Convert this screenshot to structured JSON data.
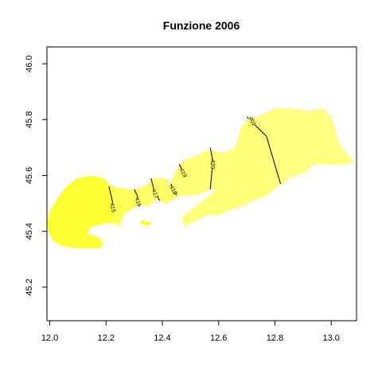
{
  "chart_data": {
    "type": "map",
    "title": "Funzione 2006",
    "xlabel": "",
    "ylabel": "",
    "xlim": [
      11.99,
      13.09
    ],
    "ylim": [
      45.08,
      46.06
    ],
    "x_ticks": [
      {
        "value": 12.0,
        "label": "12.0"
      },
      {
        "value": 12.2,
        "label": "12.2"
      },
      {
        "value": 12.4,
        "label": "12.4"
      },
      {
        "value": 12.6,
        "label": "12.6"
      },
      {
        "value": 12.8,
        "label": "12.8"
      },
      {
        "value": 13.0,
        "label": "13.0"
      }
    ],
    "y_ticks": [
      {
        "value": 45.2,
        "label": "45.2"
      },
      {
        "value": 45.4,
        "label": "45.4"
      },
      {
        "value": 45.6,
        "label": "45.6"
      },
      {
        "value": 45.8,
        "label": "45.8"
      },
      {
        "value": 46.0,
        "label": "46.0"
      }
    ],
    "grid": false,
    "regions": [
      {
        "fill": "#ffff33",
        "points": [
          [
            12.22,
            45.56
          ],
          [
            12.19,
            45.59
          ],
          [
            12.15,
            45.6
          ],
          [
            12.1,
            45.59
          ],
          [
            12.06,
            45.56
          ],
          [
            12.03,
            45.52
          ],
          [
            12.0,
            45.47
          ],
          [
            11.99,
            45.42
          ],
          [
            12.01,
            45.37
          ],
          [
            12.04,
            45.35
          ],
          [
            12.1,
            45.34
          ],
          [
            12.18,
            45.34
          ],
          [
            12.19,
            45.36
          ],
          [
            12.17,
            45.38
          ],
          [
            12.13,
            45.39
          ],
          [
            12.15,
            45.42
          ],
          [
            12.2,
            45.43
          ],
          [
            12.23,
            45.43
          ],
          [
            12.22,
            45.49
          ]
        ]
      },
      {
        "fill": "#ffff55",
        "points": [
          [
            12.22,
            45.56
          ],
          [
            12.28,
            45.55
          ],
          [
            12.31,
            45.55
          ],
          [
            12.32,
            45.5
          ],
          [
            12.29,
            45.48
          ],
          [
            12.26,
            45.46
          ],
          [
            12.25,
            45.42
          ],
          [
            12.23,
            45.43
          ],
          [
            12.22,
            45.49
          ]
        ]
      },
      {
        "fill": "#ffff66",
        "points": [
          [
            12.31,
            45.55
          ],
          [
            12.35,
            45.57
          ],
          [
            12.37,
            45.59
          ],
          [
            12.38,
            45.52
          ],
          [
            12.35,
            45.49
          ],
          [
            12.32,
            45.5
          ]
        ]
      },
      {
        "fill": "#ffff6a",
        "points": [
          [
            12.37,
            45.59
          ],
          [
            12.41,
            45.59
          ],
          [
            12.43,
            45.57
          ],
          [
            12.45,
            45.52
          ],
          [
            12.41,
            45.5
          ],
          [
            12.38,
            45.52
          ]
        ]
      },
      {
        "fill": "#ffff77",
        "points": [
          [
            12.43,
            45.57
          ],
          [
            12.45,
            45.62
          ],
          [
            12.47,
            45.65
          ],
          [
            12.52,
            45.67
          ],
          [
            12.56,
            45.69
          ],
          [
            12.58,
            45.69
          ],
          [
            12.57,
            45.55
          ],
          [
            12.52,
            45.53
          ],
          [
            12.47,
            45.53
          ],
          [
            12.45,
            45.52
          ]
        ]
      },
      {
        "fill": "#ffff7a",
        "points": [
          [
            12.58,
            45.69
          ],
          [
            12.62,
            45.68
          ],
          [
            12.66,
            45.7
          ],
          [
            12.68,
            45.77
          ],
          [
            12.71,
            45.81
          ],
          [
            12.72,
            45.8
          ],
          [
            12.82,
            45.57
          ],
          [
            12.77,
            45.53
          ],
          [
            12.7,
            45.5
          ],
          [
            12.65,
            45.48
          ],
          [
            12.6,
            45.46
          ],
          [
            12.56,
            45.46
          ],
          [
            12.52,
            45.44
          ],
          [
            12.48,
            45.42
          ],
          [
            12.47,
            45.45
          ],
          [
            12.52,
            45.49
          ],
          [
            12.57,
            45.53
          ],
          [
            12.6,
            45.55
          ],
          [
            12.57,
            45.55
          ]
        ]
      },
      {
        "fill": "#ffff82",
        "points": [
          [
            12.72,
            45.8
          ],
          [
            12.76,
            45.82
          ],
          [
            12.8,
            45.84
          ],
          [
            12.86,
            45.84
          ],
          [
            12.92,
            45.83
          ],
          [
            12.97,
            45.84
          ],
          [
            13.0,
            45.81
          ],
          [
            13.03,
            45.71
          ],
          [
            13.07,
            45.66
          ],
          [
            13.08,
            45.65
          ],
          [
            13.04,
            45.64
          ],
          [
            12.99,
            45.64
          ],
          [
            12.94,
            45.64
          ],
          [
            12.9,
            45.61
          ],
          [
            12.85,
            45.59
          ],
          [
            12.82,
            45.57
          ]
        ]
      },
      {
        "fill": "#ffff33",
        "points": [
          [
            12.32,
            45.43
          ],
          [
            12.35,
            45.42
          ],
          [
            12.36,
            45.43
          ],
          [
            12.33,
            45.44
          ]
        ]
      }
    ],
    "contours": [
      {
        "label": "415",
        "points": [
          [
            12.21,
            45.56
          ],
          [
            12.22,
            45.52
          ],
          [
            12.23,
            45.47
          ]
        ],
        "label_at": [
          12.225,
          45.485
        ]
      },
      {
        "label": "416",
        "points": [
          [
            12.3,
            45.55
          ],
          [
            12.31,
            45.53
          ],
          [
            12.32,
            45.49
          ]
        ],
        "label_at": [
          12.315,
          45.505
        ]
      },
      {
        "label": "417",
        "points": [
          [
            12.36,
            45.59
          ],
          [
            12.37,
            45.55
          ],
          [
            12.39,
            45.51
          ]
        ],
        "label_at": [
          12.375,
          45.535
        ]
      },
      {
        "label": "418",
        "points": [
          [
            12.43,
            45.57
          ],
          [
            12.44,
            45.55
          ],
          [
            12.45,
            45.53
          ]
        ],
        "label_at": [
          12.44,
          45.548
        ]
      },
      {
        "label": "419",
        "points": [
          [
            12.46,
            45.64
          ],
          [
            12.47,
            45.62
          ],
          [
            12.48,
            45.6
          ]
        ],
        "label_at": [
          12.475,
          45.61
        ]
      },
      {
        "label": "420",
        "points": [
          [
            12.57,
            45.7
          ],
          [
            12.58,
            45.65
          ],
          [
            12.57,
            45.55
          ]
        ],
        "label_at": [
          12.58,
          45.64
        ]
      },
      {
        "label": "401",
        "points": [
          [
            12.7,
            45.81
          ],
          [
            12.77,
            45.74
          ],
          [
            12.82,
            45.57
          ]
        ],
        "label_at": [
          12.72,
          45.795
        ]
      }
    ]
  }
}
